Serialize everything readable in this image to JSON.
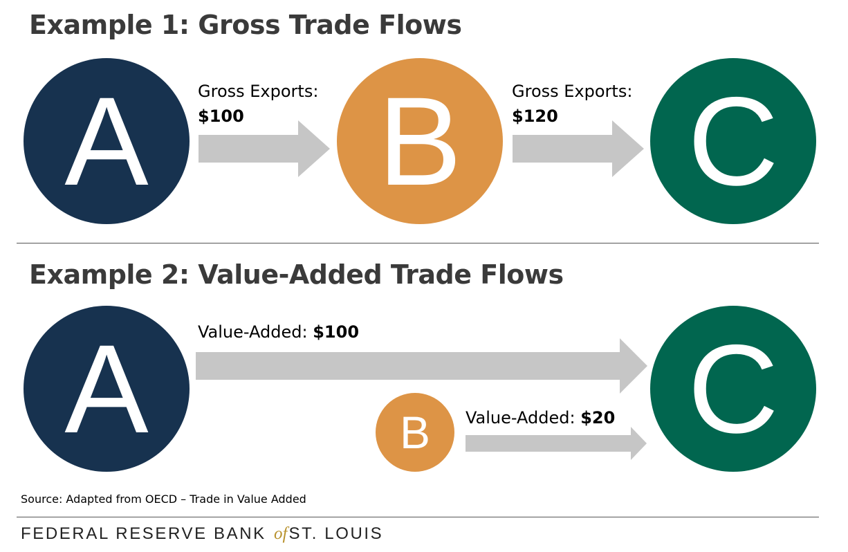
{
  "colors": {
    "node_a": "#17324f",
    "node_b": "#dd9446",
    "node_c": "#01664f",
    "arrow": "#c6c6c6"
  },
  "example1": {
    "title": "Example 1: Gross Trade Flows",
    "nodes": {
      "a": "A",
      "b": "B",
      "c": "C"
    },
    "flow_ab": {
      "label": "Gross Exports:",
      "value": "$100"
    },
    "flow_bc": {
      "label": "Gross Exports:",
      "value": "$120"
    }
  },
  "example2": {
    "title": "Example 2: Value-Added Trade Flows",
    "nodes": {
      "a": "A",
      "b": "B",
      "c": "C"
    },
    "flow_ac": {
      "label": "Value-Added:",
      "value": "$100"
    },
    "flow_bc": {
      "label": "Value-Added:",
      "value": "$20"
    }
  },
  "footer": {
    "source": "Source: Adapted from OECD – Trade in Value Added",
    "logo_left": "FEDERAL RESERVE BANK",
    "logo_of": "of",
    "logo_right": "ST. LOUIS"
  }
}
